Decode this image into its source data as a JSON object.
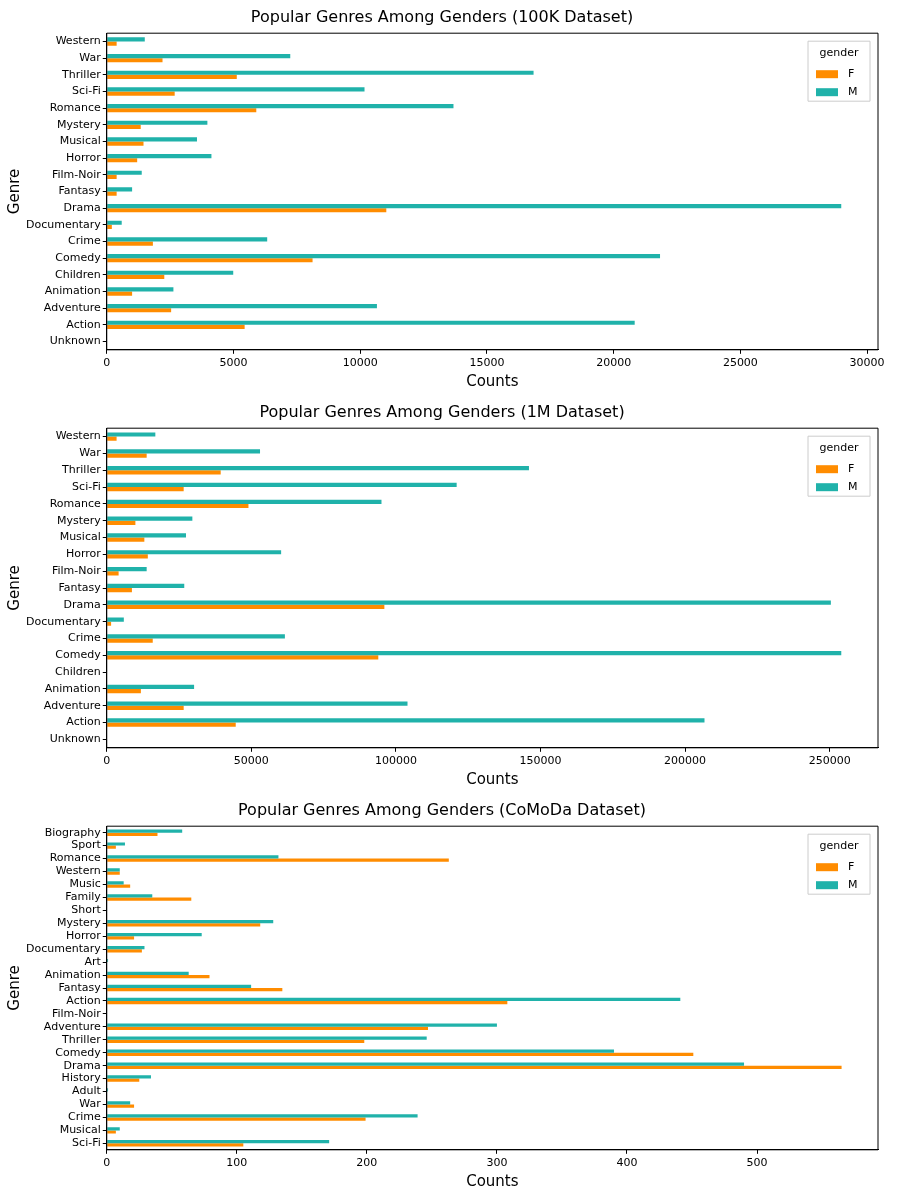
{
  "chart_data": [
    {
      "type": "bar",
      "orientation": "horizontal",
      "title": "Popular Genres Among Genders (100K Dataset)",
      "xlabel": "Counts",
      "ylabel": "Genre",
      "legend_title": "gender",
      "legend": "top right",
      "grid": false,
      "categories": [
        "Western",
        "War",
        "Thriller",
        "Sci-Fi",
        "Romance",
        "Mystery",
        "Musical",
        "Horror",
        "Film-Noir",
        "Fantasy",
        "Drama",
        "Documentary",
        "Crime",
        "Comedy",
        "Children",
        "Animation",
        "Adventure",
        "Action",
        "Unknown"
      ],
      "xlim": [
        0,
        30430
      ],
      "xticks": [
        0,
        5000,
        10000,
        15000,
        20000,
        25000,
        30000
      ],
      "series": [
        {
          "name": "F",
          "color": "#ff8c00",
          "values": [
            390,
            2200,
            5130,
            2680,
            5900,
            1340,
            1450,
            1200,
            390,
            390,
            11030,
            200,
            1820,
            8120,
            2270,
            1000,
            2540,
            5440,
            0
          ]
        },
        {
          "name": "M",
          "color": "#20b2aa",
          "values": [
            1500,
            7240,
            16840,
            10170,
            13680,
            3970,
            3560,
            4130,
            1380,
            1000,
            28980,
            590,
            6330,
            21830,
            4990,
            2630,
            10660,
            20830,
            0
          ]
        }
      ]
    },
    {
      "type": "bar",
      "orientation": "horizontal",
      "title": "Popular Genres Among Genders (1M Dataset)",
      "xlabel": "Counts",
      "ylabel": "Genre",
      "legend_title": "gender",
      "legend": "top right",
      "grid": false,
      "categories": [
        "Western",
        "War",
        "Thriller",
        "Sci-Fi",
        "Romance",
        "Mystery",
        "Musical",
        "Horror",
        "Film-Noir",
        "Fantasy",
        "Drama",
        "Documentary",
        "Crime",
        "Comedy",
        "Children",
        "Animation",
        "Adventure",
        "Action",
        "Unknown"
      ],
      "xlim": [
        0,
        266700
      ],
      "xticks": [
        0,
        50000,
        100000,
        150000,
        200000,
        250000
      ],
      "series": [
        {
          "name": "F",
          "color": "#ff8c00",
          "values": [
            3400,
            13800,
            39400,
            26600,
            49000,
            9900,
            13000,
            14200,
            4100,
            8700,
            96000,
            1500,
            15900,
            93900,
            0,
            11800,
            26600,
            44600,
            0
          ]
        },
        {
          "name": "M",
          "color": "#20b2aa",
          "values": [
            16800,
            53000,
            146000,
            121000,
            95000,
            29600,
            27400,
            60300,
            13800,
            26800,
            250400,
            5900,
            61600,
            254000,
            0,
            30200,
            104000,
            206700,
            0
          ]
        }
      ]
    },
    {
      "type": "bar",
      "orientation": "horizontal",
      "title": "Popular Genres Among Genders (CoMoDa Dataset)",
      "xlabel": "Counts",
      "ylabel": "Genre",
      "legend_title": "gender",
      "legend": "top right",
      "grid": false,
      "categories": [
        "Biography",
        "Sport",
        "Romance",
        "Western",
        "Music",
        "Family",
        "Short",
        "Mystery",
        "Horror",
        "Documentary",
        "Art",
        "Animation",
        "Fantasy",
        "Action",
        "Film-Noir",
        "Adventure",
        "Thriller",
        "Comedy",
        "Drama",
        "History",
        "Adult",
        "War",
        "Crime",
        "Musical",
        "Sci-Fi"
      ],
      "xlim": [
        0,
        593
      ],
      "xticks": [
        0,
        100,
        200,
        300,
        400,
        500
      ],
      "series": [
        {
          "name": "F",
          "color": "#ff8c00",
          "values": [
            39,
            7,
            263,
            10,
            18,
            65,
            0,
            118,
            21,
            27,
            0,
            79,
            135,
            308,
            0,
            247,
            198,
            451,
            565,
            25,
            0,
            21,
            199,
            7,
            105
          ]
        },
        {
          "name": "M",
          "color": "#20b2aa",
          "values": [
            58,
            14,
            132,
            10,
            13,
            35,
            0,
            128,
            73,
            29,
            1,
            63,
            111,
            441,
            0,
            300,
            246,
            390,
            490,
            34,
            1,
            18,
            239,
            10,
            171
          ]
        }
      ]
    }
  ]
}
